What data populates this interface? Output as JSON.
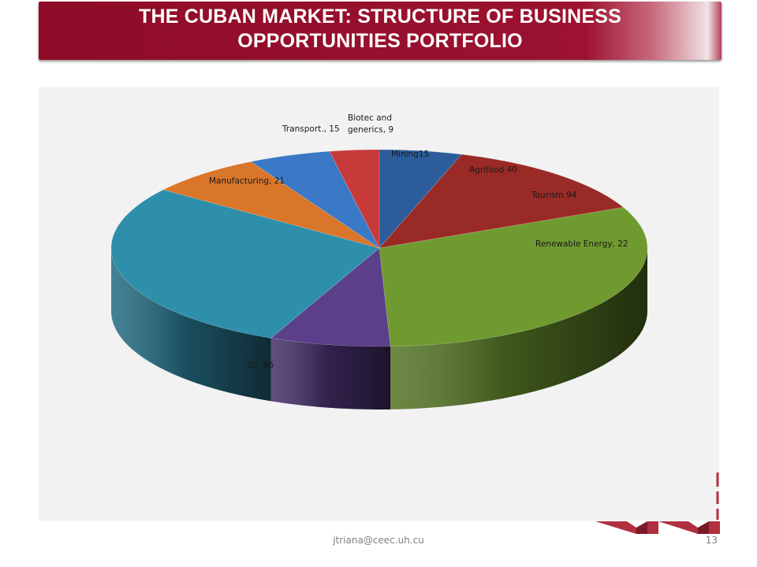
{
  "slide": {
    "title_line1": "THE CUBAN MARKET: STRUCTURE OF BUSINESS",
    "title_line2": "OPPORTUNITIES PORTFOLIO",
    "footer_email": "jtriana@ceec.uh.cu",
    "page_number": "13"
  },
  "chart_data": {
    "type": "pie",
    "style": "3d-exploded",
    "slices": [
      {
        "label_lines": [
          "Mining15"
        ],
        "value": 15,
        "color": "#2c5d9a"
      },
      {
        "label_lines": [
          "Agrifood 40"
        ],
        "value": 40,
        "color": "#9a2a26"
      },
      {
        "label_lines": [
          "Tourism 94"
        ],
        "value": 94,
        "color": "#6f9a30"
      },
      {
        "label_lines": [
          "Renewable Energy, 22"
        ],
        "value": 22,
        "color": "#5b3f8a"
      },
      {
        "label_lines": [
          "Oil, 86"
        ],
        "value": 86,
        "color": "#2e8fab"
      },
      {
        "label_lines": [
          "Manufacturing, 21"
        ],
        "value": 21,
        "color": "#d9762a"
      },
      {
        "label_lines": [
          "Transport., 15"
        ],
        "value": 15,
        "color": "#3a79c6"
      },
      {
        "label_lines": [
          "Biotec and",
          "generics, 9"
        ],
        "value": 9,
        "color": "#c83a3a"
      }
    ],
    "legend": "none"
  }
}
